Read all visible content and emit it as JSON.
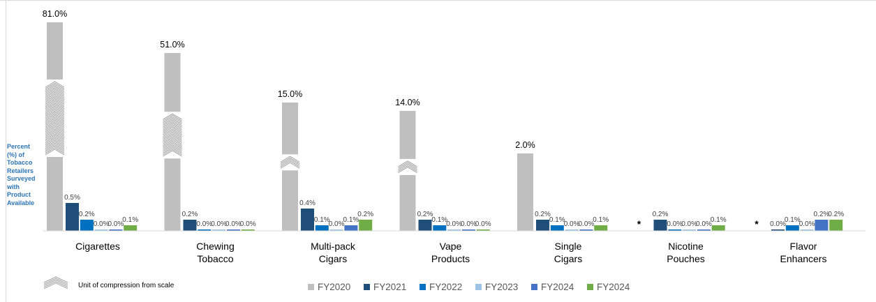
{
  "chart_data": {
    "type": "bar",
    "title": "",
    "xlabel": "",
    "ylabel": "Percent\n(%) of\nTobacco\nRetailers\nSurveyed\nwith\nProduct\nAvailable",
    "categories": [
      "Cigarettes",
      "Chewing\nTobacco",
      "Multi-pack\nCigars",
      "Vape\nProducts",
      "Single\nCigars",
      "Nicotine\nPouches",
      "Flavor\nEnhancers"
    ],
    "series": [
      {
        "name": "FY2020",
        "color": "#bfbfbf",
        "values": [
          81.0,
          51.0,
          15.0,
          14.0,
          2.0,
          null,
          null
        ],
        "labels": [
          "81.0%",
          "51.0%",
          "15.0%",
          "14.0%",
          "2.0%",
          "*",
          "*"
        ]
      },
      {
        "name": "FY2021",
        "color": "#1f4e79",
        "values": [
          0.5,
          0.2,
          0.4,
          0.2,
          0.2,
          0.2,
          0.0
        ],
        "labels": [
          "0.5%",
          "0.2%",
          "0.4%",
          "0.2%",
          "0.2%",
          "0.2%",
          "0.0%"
        ]
      },
      {
        "name": "FY2022",
        "color": "#0070c0",
        "values": [
          0.2,
          0.0,
          0.1,
          0.1,
          0.1,
          0.0,
          0.1
        ],
        "labels": [
          "0.2%",
          "0.0%",
          "0.1%",
          "0.1%",
          "0.1%",
          "0.0%",
          "0.1%"
        ]
      },
      {
        "name": "FY2023",
        "color": "#9dc3e6",
        "values": [
          0.0,
          0.0,
          0.0,
          0.0,
          0.0,
          0.0,
          0.0
        ],
        "labels": [
          "0.0%",
          "0.0%",
          "0.0%",
          "0.0%",
          "0.0%",
          "0.0%",
          "0.0%"
        ]
      },
      {
        "name": "FY2024",
        "color": "#4472c4",
        "values": [
          0.0,
          0.0,
          0.1,
          0.0,
          0.0,
          0.0,
          0.2
        ],
        "labels": [
          "0.0%",
          "0.0%",
          "0.1%",
          "0.0%",
          "0.0%",
          "0.0%",
          "0.2%"
        ]
      },
      {
        "name": "FY2024",
        "color": "#70ad47",
        "values": [
          0.1,
          0.0,
          0.2,
          0.0,
          0.1,
          0.1,
          0.2
        ],
        "labels": [
          "0.1%",
          "0.0%",
          "0.2%",
          "0.0%",
          "0.1%",
          "0.1%",
          "0.2%"
        ]
      }
    ],
    "compression_breaks": [
      9,
      5,
      1,
      1,
      0,
      0,
      0
    ],
    "compression_legend": "Unit of compression from scale",
    "axis_scale": "compressed",
    "grid": false,
    "legend_position": "bottom"
  }
}
